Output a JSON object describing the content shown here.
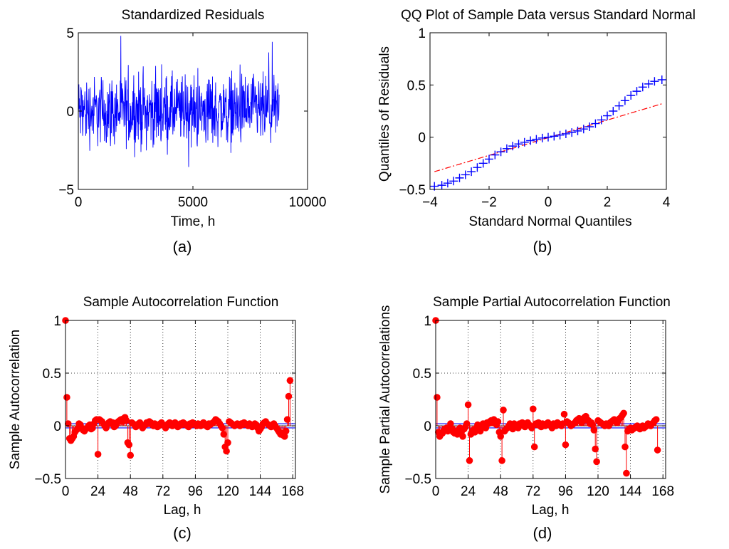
{
  "figure": {
    "panels": [
      {
        "id": "a",
        "caption": "(a)"
      },
      {
        "id": "b",
        "caption": "(b)"
      },
      {
        "id": "c",
        "caption": "(c)"
      },
      {
        "id": "d",
        "caption": "(d)"
      }
    ]
  },
  "chart_data": [
    {
      "panel": "a",
      "type": "line",
      "title": "Standardized Residuals",
      "xlabel": "Time, h",
      "ylabel": "",
      "xlim": [
        0,
        10000
      ],
      "ylim": [
        -5,
        5
      ],
      "xticks": [
        0,
        5000,
        10000
      ],
      "yticks": [
        -5,
        0,
        5
      ],
      "tick_labels_x": [
        "0",
        "5000",
        "10000"
      ],
      "tick_labels_y": [
        "−5",
        "0",
        "5"
      ],
      "grid": false,
      "series": [
        {
          "color": "#0000ff",
          "x_start": 0,
          "x_end": 8760,
          "n_points": 8760,
          "summary": {
            "typical_min": -3,
            "typical_max": 3,
            "observed_min": -4.2,
            "observed_max": 4.8
          }
        }
      ]
    },
    {
      "panel": "b",
      "type": "scatter",
      "title": "QQ Plot of Sample Data versus Standard Normal",
      "xlabel": "Standard Normal Quantiles",
      "ylabel": "Quantiles of Residuals",
      "xlim": [
        -4,
        4
      ],
      "ylim": [
        -0.5,
        1
      ],
      "xticks": [
        -4,
        -2,
        0,
        2,
        4
      ],
      "yticks": [
        -0.5,
        0,
        0.5,
        1
      ],
      "tick_labels_x": [
        "−4",
        "−2",
        "0",
        "2",
        "4"
      ],
      "tick_labels_y": [
        "−0.5",
        "0",
        "0.5",
        "1"
      ],
      "grid": false,
      "series": [
        {
          "color": "#0000ff",
          "marker": "+",
          "x": [
            -3.85,
            -3.6,
            -3.4,
            -3.2,
            -3.0,
            -2.8,
            -2.6,
            -2.4,
            -2.2,
            -2.0,
            -1.8,
            -1.6,
            -1.4,
            -1.2,
            -1.0,
            -0.8,
            -0.6,
            -0.4,
            -0.2,
            0.0,
            0.2,
            0.4,
            0.6,
            0.8,
            1.0,
            1.2,
            1.4,
            1.6,
            1.8,
            2.0,
            2.2,
            2.4,
            2.6,
            2.8,
            3.0,
            3.2,
            3.4,
            3.6,
            3.85
          ],
          "y": [
            -0.47,
            -0.46,
            -0.44,
            -0.42,
            -0.39,
            -0.36,
            -0.33,
            -0.29,
            -0.25,
            -0.21,
            -0.17,
            -0.14,
            -0.11,
            -0.085,
            -0.065,
            -0.048,
            -0.033,
            -0.02,
            -0.008,
            0.0,
            0.009,
            0.02,
            0.032,
            0.045,
            0.06,
            0.078,
            0.1,
            0.13,
            0.165,
            0.205,
            0.25,
            0.3,
            0.35,
            0.4,
            0.44,
            0.48,
            0.51,
            0.535,
            0.55
          ]
        },
        {
          "color": "#ff0000",
          "style": "dash-dot",
          "x": [
            -3.85,
            3.85
          ],
          "y": [
            -0.33,
            0.32
          ]
        }
      ]
    },
    {
      "panel": "c",
      "type": "stem",
      "title": "Sample Autocorrelation Function",
      "xlabel": "Lag, h",
      "ylabel": "Sample Autocorrelation",
      "xlim": [
        0,
        170
      ],
      "ylim": [
        -0.5,
        1
      ],
      "xticks": [
        0,
        24,
        48,
        72,
        96,
        120,
        144,
        168
      ],
      "yticks": [
        -0.5,
        0,
        0.5,
        1
      ],
      "tick_labels_x": [
        "0",
        "24",
        "48",
        "72",
        "96",
        "120",
        "144",
        "168"
      ],
      "tick_labels_y": [
        "−0.5",
        "0",
        "0.5",
        "1"
      ],
      "grid": true,
      "confidence_bounds": [
        -0.02,
        0.02
      ],
      "lags_start": 0,
      "series": [
        {
          "color": "#ff0000",
          "values": [
            1.0,
            0.27,
            0.02,
            -0.12,
            -0.14,
            -0.12,
            -0.1,
            -0.06,
            -0.04,
            -0.03,
            0.02,
            0.01,
            -0.02,
            -0.04,
            -0.05,
            -0.03,
            -0.02,
            0.0,
            0.01,
            -0.03,
            -0.02,
            0.02,
            0.05,
            0.06,
            -0.27,
            0.06,
            0.05,
            0.04,
            0.02,
            0.0,
            -0.02,
            0.01,
            0.03,
            0.04,
            0.02,
            0.03,
            -0.01,
            0.0,
            0.02,
            0.04,
            0.05,
            0.06,
            0.04,
            0.07,
            0.08,
            0.05,
            -0.16,
            -0.18,
            -0.28,
            0.03,
            0.02,
            0.01,
            -0.01,
            0.0,
            0.02,
            0.03,
            0.01,
            -0.02,
            0.0,
            0.01,
            0.03,
            0.02,
            0.04,
            0.03,
            0.01,
            0.0,
            0.02,
            0.01,
            -0.01,
            0.0,
            0.02,
            0.03,
            0.01,
            0.0,
            -0.02,
            0.01,
            0.02,
            0.03,
            0.01,
            0.0,
            0.02,
            0.03,
            0.01,
            -0.01,
            0.0,
            0.02,
            0.01,
            0.03,
            0.02,
            0.01,
            0.0,
            -0.01,
            0.02,
            0.01,
            0.03,
            0.02,
            0.01,
            0.0,
            0.02,
            0.01,
            0.0,
            0.02,
            0.03,
            0.01,
            0.0,
            -0.01,
            0.02,
            0.01,
            0.02,
            0.03,
            0.04,
            0.06,
            0.05,
            0.04,
            0.02,
            0.0,
            -0.02,
            -0.08,
            -0.2,
            -0.24,
            -0.16,
            0.04,
            0.03,
            0.02,
            0.01,
            0.0,
            0.01,
            0.02,
            0.01,
            0.0,
            0.02,
            0.01,
            0.03,
            0.02,
            0.01,
            0.0,
            0.02,
            0.01,
            -0.01,
            0.0,
            0.02,
            0.01,
            -0.02,
            -0.05,
            -0.03,
            -0.01,
            0.02,
            0.03,
            0.04,
            0.02,
            0.01,
            0.0,
            -0.01,
            0.01,
            0.02,
            0.0,
            -0.02,
            -0.04,
            -0.06,
            -0.08,
            -0.07,
            -0.09,
            -0.1,
            -0.05,
            0.06,
            0.28,
            0.43
          ]
        }
      ]
    },
    {
      "panel": "d",
      "type": "stem",
      "title": "Sample Partial Autocorrelation Function",
      "xlabel": "Lag, h",
      "ylabel": "Sample Partial Autocorrelations",
      "xlim": [
        0,
        170
      ],
      "ylim": [
        -0.5,
        1
      ],
      "xticks": [
        0,
        24,
        48,
        72,
        96,
        120,
        144,
        168
      ],
      "yticks": [
        -0.5,
        0,
        0.5,
        1
      ],
      "tick_labels_x": [
        "0",
        "24",
        "48",
        "72",
        "96",
        "120",
        "144",
        "168"
      ],
      "tick_labels_y": [
        "−0.5",
        "0",
        "0.5",
        "1"
      ],
      "grid": true,
      "confidence_bounds": [
        -0.02,
        0.02
      ],
      "lags_start": 0,
      "series": [
        {
          "color": "#ff0000",
          "values": [
            1.0,
            0.27,
            -0.06,
            -0.1,
            -0.08,
            -0.07,
            -0.05,
            -0.03,
            -0.02,
            -0.05,
            -0.04,
            0.02,
            -0.03,
            -0.06,
            -0.07,
            -0.05,
            -0.08,
            -0.04,
            -0.02,
            -0.06,
            -0.1,
            -0.03,
            -0.01,
            0.02,
            0.2,
            -0.33,
            -0.08,
            -0.05,
            -0.04,
            -0.06,
            -0.02,
            0.01,
            -0.03,
            -0.05,
            -0.01,
            0.02,
            0.0,
            -0.02,
            0.03,
            0.02,
            0.04,
            0.05,
            0.03,
            0.06,
            0.02,
            0.01,
            0.04,
            -0.06,
            -0.1,
            -0.33,
            0.15,
            -0.05,
            -0.03,
            -0.02,
            0.0,
            0.02,
            0.01,
            -0.03,
            0.02,
            0.01,
            0.0,
            -0.02,
            0.02,
            0.01,
            0.03,
            0.0,
            -0.01,
            0.02,
            0.03,
            0.01,
            0.0,
            -0.02,
            0.16,
            -0.2,
            0.02,
            0.01,
            0.03,
            0.0,
            -0.01,
            0.02,
            0.01,
            0.0,
            0.02,
            0.03,
            0.01,
            0.0,
            -0.02,
            0.02,
            0.01,
            0.0,
            0.03,
            0.02,
            0.01,
            0.0,
            0.02,
            0.11,
            -0.18,
            0.04,
            0.03,
            0.02,
            0.0,
            0.01,
            0.02,
            0.03,
            0.05,
            0.06,
            0.07,
            0.04,
            0.03,
            0.05,
            0.08,
            0.09,
            0.06,
            0.05,
            0.02,
            0.03,
            0.01,
            -0.04,
            -0.22,
            -0.34,
            0.05,
            0.04,
            0.03,
            0.02,
            0.01,
            0.0,
            0.02,
            0.01,
            0.0,
            0.03,
            0.04,
            0.05,
            0.06,
            0.04,
            0.03,
            0.05,
            0.07,
            0.08,
            0.1,
            0.12,
            -0.2,
            -0.45,
            -0.05,
            -0.03,
            -0.02,
            -0.04,
            -0.03,
            -0.02,
            -0.01,
            0.0,
            -0.02,
            -0.03,
            -0.01,
            0.0,
            -0.02,
            -0.01,
            0.0,
            0.02,
            0.01,
            0.0,
            0.02,
            0.03,
            0.05,
            0.06,
            -0.23
          ]
        }
      ]
    }
  ]
}
